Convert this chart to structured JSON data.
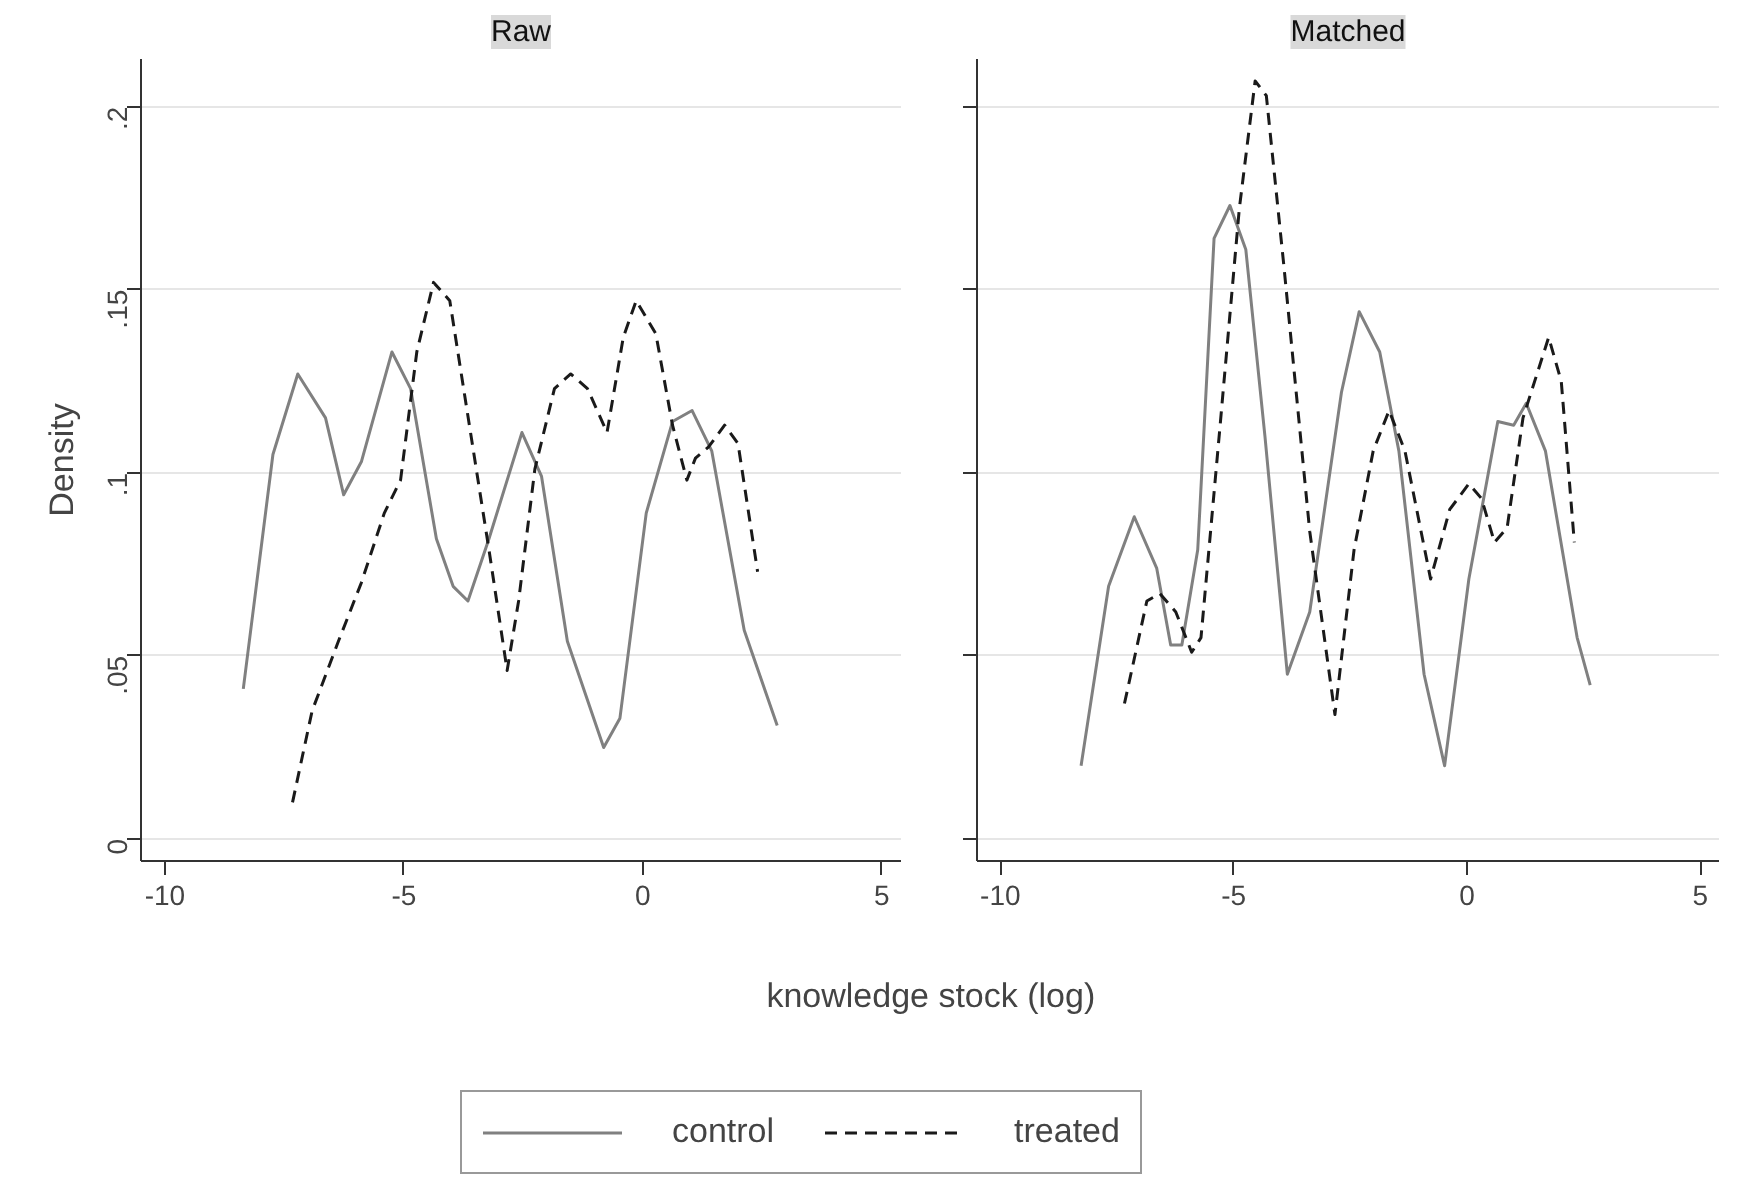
{
  "chart_data": [
    {
      "type": "line",
      "title": "Raw",
      "ylabel": "Density",
      "xlabel": "knowledge stock (log)",
      "xlim": [
        -10.5,
        5.4
      ],
      "ylim": [
        -0.006,
        0.213
      ],
      "xticks": [
        -10,
        -5,
        0,
        5
      ],
      "yticks": [
        {
          "value": 0,
          "label": "0"
        },
        {
          "value": 0.05,
          "label": ".05"
        },
        {
          "value": 0.1,
          "label": ".1"
        },
        {
          "value": 0.15,
          "label": ".15"
        },
        {
          "value": 0.2,
          "label": ".2"
        }
      ],
      "grid": "y",
      "legend": "bottom",
      "series": [
        {
          "name": "control",
          "color": "#808080",
          "line_style": "solid",
          "x": [
            -8.36,
            -7.74,
            -7.22,
            -6.64,
            -6.26,
            -5.89,
            -5.25,
            -4.86,
            -4.32,
            -3.97,
            -3.66,
            -3.22,
            -2.53,
            -2.12,
            -1.58,
            -0.82,
            -0.48,
            0.07,
            0.62,
            1.03,
            1.44,
            2.12,
            2.81
          ],
          "values": [
            0.041,
            0.105,
            0.127,
            0.115,
            0.094,
            0.103,
            0.133,
            0.123,
            0.082,
            0.069,
            0.065,
            0.082,
            0.111,
            0.099,
            0.054,
            0.025,
            0.033,
            0.089,
            0.114,
            0.117,
            0.106,
            0.057,
            0.031
          ]
        },
        {
          "name": "treated",
          "color": "#1a1a1a",
          "line_style": "dashed",
          "x": [
            -7.33,
            -6.92,
            -6.37,
            -5.89,
            -5.41,
            -5.07,
            -4.73,
            -4.38,
            -4.04,
            -3.63,
            -3.22,
            -2.84,
            -2.6,
            -2.26,
            -1.85,
            -1.51,
            -1.16,
            -0.75,
            -0.41,
            -0.14,
            0.27,
            0.62,
            0.92,
            1.1,
            1.37,
            1.71,
            1.99,
            2.4
          ],
          "values": [
            0.01,
            0.035,
            0.054,
            0.07,
            0.089,
            0.098,
            0.133,
            0.152,
            0.147,
            0.113,
            0.079,
            0.046,
            0.065,
            0.101,
            0.123,
            0.127,
            0.123,
            0.111,
            0.137,
            0.147,
            0.138,
            0.113,
            0.098,
            0.104,
            0.107,
            0.113,
            0.108,
            0.073
          ]
        }
      ]
    },
    {
      "type": "line",
      "title": "Matched",
      "xlim": [
        -10.5,
        5.4
      ],
      "ylim": [
        -0.006,
        0.213
      ],
      "xticks": [
        -10,
        -5,
        0,
        5
      ],
      "yticks": [
        0,
        0.05,
        0.1,
        0.15,
        0.2
      ],
      "grid": "y",
      "tick_labels": "x",
      "series": [
        {
          "color": "#808080",
          "line_style": "solid",
          "x": [
            -8.27,
            -7.68,
            -7.13,
            -6.65,
            -6.35,
            -6.11,
            -5.77,
            -5.42,
            -5.08,
            -4.74,
            -4.33,
            -3.85,
            -3.37,
            -2.69,
            -2.31,
            -1.87,
            -1.46,
            -0.92,
            -0.48,
            0.04,
            0.66,
            1.0,
            1.27,
            1.68,
            2.36,
            2.64
          ],
          "values": [
            0.02,
            0.069,
            0.088,
            0.074,
            0.053,
            0.053,
            0.079,
            0.164,
            0.173,
            0.161,
            0.11,
            0.045,
            0.062,
            0.122,
            0.144,
            0.133,
            0.106,
            0.045,
            0.02,
            0.071,
            0.114,
            0.113,
            0.119,
            0.106,
            0.055,
            0.042
          ]
        },
        {
          "color": "#1a1a1a",
          "line_style": "dashed",
          "x": [
            -7.34,
            -6.86,
            -6.58,
            -6.24,
            -5.9,
            -5.7,
            -5.29,
            -4.88,
            -4.54,
            -4.3,
            -3.92,
            -3.37,
            -2.83,
            -2.42,
            -2.01,
            -1.67,
            -1.33,
            -0.78,
            -0.37,
            0.04,
            0.31,
            0.59,
            0.86,
            1.2,
            1.75,
            2.02,
            2.3
          ],
          "values": [
            0.037,
            0.065,
            0.067,
            0.062,
            0.051,
            0.055,
            0.113,
            0.172,
            0.207,
            0.203,
            0.156,
            0.084,
            0.034,
            0.079,
            0.106,
            0.117,
            0.106,
            0.071,
            0.09,
            0.097,
            0.093,
            0.081,
            0.085,
            0.115,
            0.137,
            0.125,
            0.081
          ]
        }
      ]
    }
  ]
}
